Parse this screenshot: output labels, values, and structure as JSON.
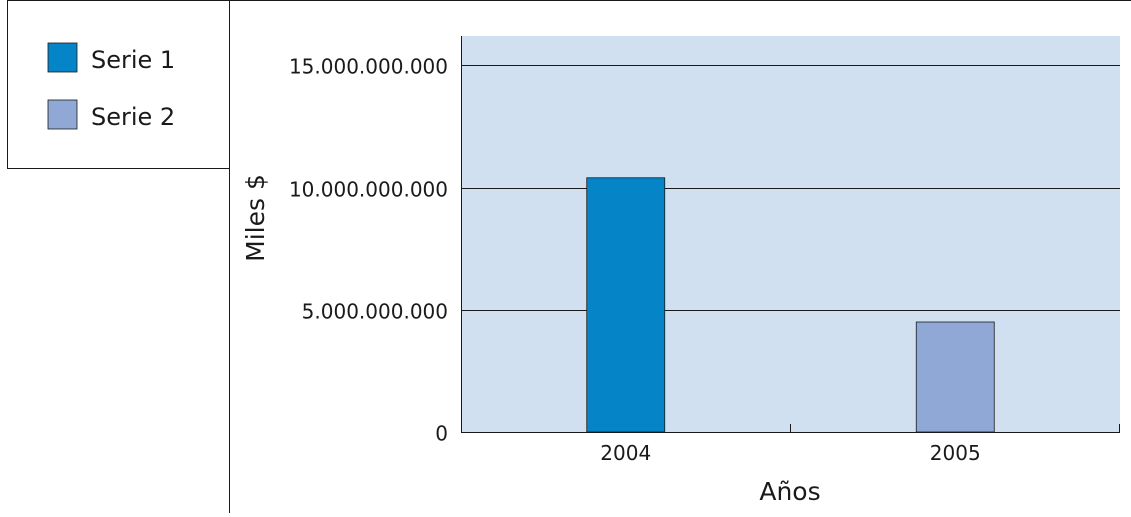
{
  "chart_data": {
    "type": "bar",
    "categories": [
      "2004",
      "2005"
    ],
    "series": [
      {
        "name": "Serie 1",
        "values": [
          10400000000,
          null
        ]
      },
      {
        "name": "Serie 2",
        "values": [
          null,
          4500000000
        ]
      }
    ],
    "xlabel": "Años",
    "ylabel": "Miles $",
    "ylim": [
      0,
      16200000000
    ],
    "yticks": [
      0,
      5000000000,
      10000000000,
      15000000000
    ],
    "ytick_labels": [
      "0",
      "5.000.000.000",
      "10.000.000.000",
      "15.000.000.000"
    ],
    "grid": true,
    "legend_position": "left-top",
    "colors": {
      "serie1": "#0585c8",
      "serie2": "#90a8d6",
      "plot_background": "#d1e0f1",
      "gridline": "#1a1a1a",
      "border": "#1a1a1a"
    }
  }
}
